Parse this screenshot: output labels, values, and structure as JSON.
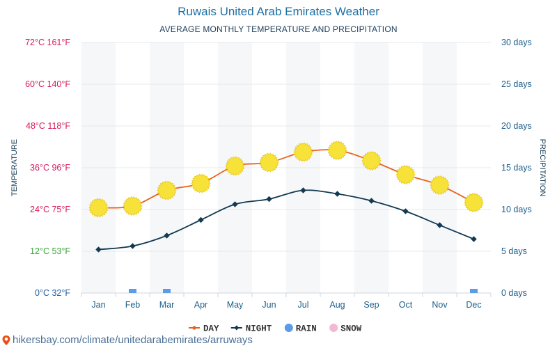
{
  "header": {
    "title": "Ruwais United Arab Emirates Weather",
    "subtitle": "AVERAGE MONTHLY TEMPERATURE AND PRECIPITATION"
  },
  "footer": {
    "url": "hikersbay.com/climate/unitedarabemirates/arruways"
  },
  "colors": {
    "day": "#e8621a",
    "night": "#123a52",
    "rain": "#5b9be8",
    "snow": "#f2b8d4",
    "sun": "#f7e23a",
    "temp_label_hot": "#d8185f",
    "temp_label_mild": "#3aa53a",
    "temp_label_cold": "#1f5f9f",
    "right_axis": "#1c5f8a",
    "month_label": "#1c5f8a"
  },
  "chart_data": {
    "type": "line",
    "title": "Ruwais United Arab Emirates Weather",
    "subtitle": "AVERAGE MONTHLY TEMPERATURE AND PRECIPITATION",
    "categories": [
      "Jan",
      "Feb",
      "Mar",
      "Apr",
      "May",
      "Jun",
      "Jul",
      "Aug",
      "Sep",
      "Oct",
      "Nov",
      "Dec"
    ],
    "y_left": {
      "label": "TEMPERATURE",
      "min": 0,
      "max": 72,
      "ticks": [
        {
          "value": 0,
          "label": "0°C 32°F",
          "color_key": "temp_label_cold"
        },
        {
          "value": 12,
          "label": "12°C 53°F",
          "color_key": "temp_label_mild"
        },
        {
          "value": 24,
          "label": "24°C 75°F",
          "color_key": "temp_label_hot"
        },
        {
          "value": 36,
          "label": "36°C 96°F",
          "color_key": "temp_label_hot"
        },
        {
          "value": 48,
          "label": "48°C 118°F",
          "color_key": "temp_label_hot"
        },
        {
          "value": 60,
          "label": "60°C 140°F",
          "color_key": "temp_label_hot"
        },
        {
          "value": 72,
          "label": "72°C 161°F",
          "color_key": "temp_label_hot"
        }
      ]
    },
    "y_right": {
      "label": "PRECIPITATION",
      "min": 0,
      "max": 30,
      "ticks": [
        {
          "value": 0,
          "label": "0 days"
        },
        {
          "value": 5,
          "label": "5 days"
        },
        {
          "value": 10,
          "label": "10 days"
        },
        {
          "value": 15,
          "label": "15 days"
        },
        {
          "value": 20,
          "label": "20 days"
        },
        {
          "value": 25,
          "label": "25 days"
        },
        {
          "value": 30,
          "label": "30 days"
        }
      ]
    },
    "series": [
      {
        "name": "DAY",
        "key": "day",
        "axis": "left",
        "values": [
          24.5,
          25,
          29.5,
          31.5,
          36.5,
          37.5,
          40.5,
          41,
          38,
          34,
          31,
          26
        ]
      },
      {
        "name": "NIGHT",
        "key": "night",
        "axis": "left",
        "values": [
          12.5,
          13.5,
          16.5,
          21,
          25.5,
          27,
          29.5,
          28.5,
          26.5,
          23.5,
          19.5,
          15.5
        ]
      },
      {
        "name": "RAIN",
        "key": "rain",
        "axis": "right",
        "values": [
          0,
          0.5,
          0.5,
          0,
          0,
          0,
          0,
          0,
          0,
          0,
          0,
          0.5
        ]
      },
      {
        "name": "SNOW",
        "key": "snow",
        "axis": "right",
        "values": [
          0,
          0,
          0,
          0,
          0,
          0,
          0,
          0,
          0,
          0,
          0,
          0
        ]
      }
    ],
    "legend": {
      "position": "bottom",
      "items": [
        {
          "label": "DAY",
          "key": "day",
          "marker": "line-dot"
        },
        {
          "label": "NIGHT",
          "key": "night",
          "marker": "line-diamond"
        },
        {
          "label": "RAIN",
          "key": "rain",
          "marker": "circle"
        },
        {
          "label": "SNOW",
          "key": "snow",
          "marker": "circle"
        }
      ]
    },
    "grid": true
  }
}
